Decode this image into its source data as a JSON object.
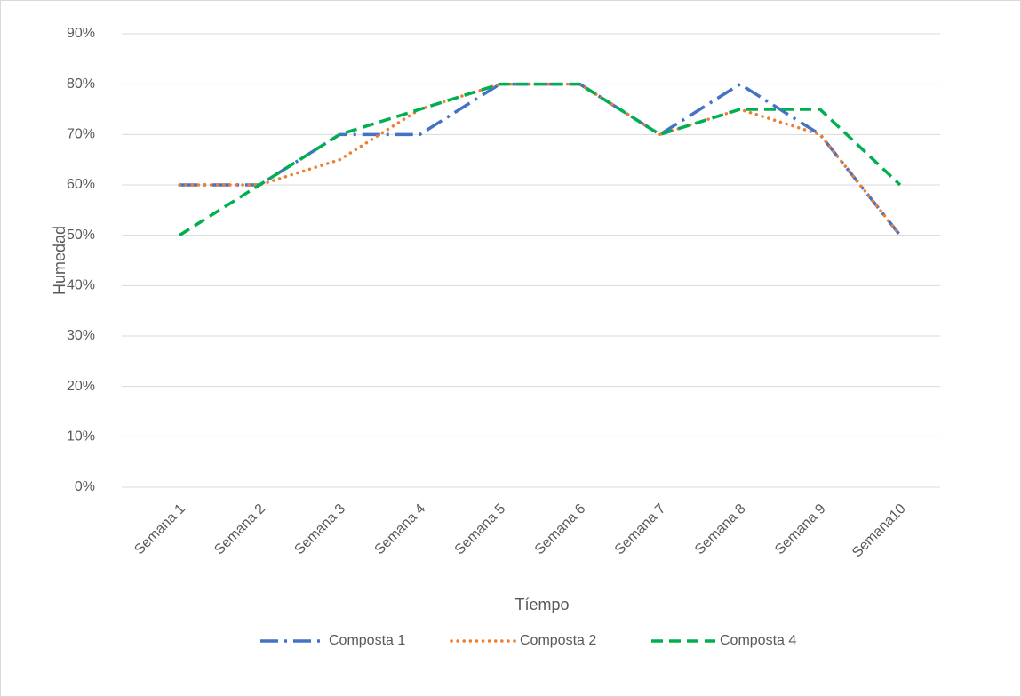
{
  "chart_data": {
    "type": "line",
    "x_label": "Tíempo",
    "y_label": "Humedad",
    "categories": [
      "Semana 1",
      "Semana 2",
      "Semana 3",
      "Semana 4",
      "Semana 5",
      "Semana 6",
      "Semana 7",
      "Semana 8",
      "Semana 9",
      "Semana10"
    ],
    "series": [
      {
        "name": "Composta 1",
        "color": "#4472c4",
        "values": [
          60,
          60,
          70,
          70,
          80,
          80,
          70,
          80,
          70,
          50
        ]
      },
      {
        "name": "Composta 2",
        "color": "#ed7d31",
        "values": [
          60,
          60,
          65,
          75,
          80,
          80,
          70,
          75,
          70,
          50
        ]
      },
      {
        "name": "Composta 4",
        "color": "#00b050",
        "values": [
          50,
          60,
          70,
          75,
          80,
          80,
          70,
          75,
          75,
          60
        ]
      }
    ],
    "ylim": [
      0,
      90
    ],
    "yticks": [
      {
        "value": 0,
        "label": "0%"
      },
      {
        "value": 10,
        "label": "10%"
      },
      {
        "value": 20,
        "label": "20%"
      },
      {
        "value": 30,
        "label": "30%"
      },
      {
        "value": 40,
        "label": "40%"
      },
      {
        "value": 50,
        "label": "50%"
      },
      {
        "value": 60,
        "label": "60%"
      },
      {
        "value": 70,
        "label": "70%"
      },
      {
        "value": 80,
        "label": "80%"
      },
      {
        "value": 90,
        "label": "90%"
      }
    ],
    "grid": true,
    "legend": "bottom"
  }
}
